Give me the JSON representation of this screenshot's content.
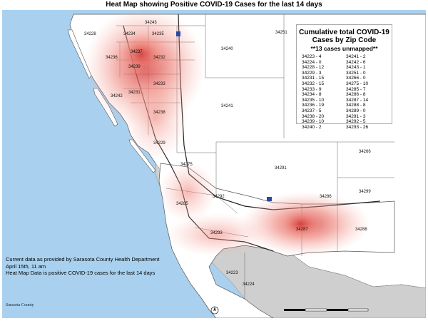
{
  "title": "Heat Map showing Positive COVID-19 Cases for the last 14 days",
  "legend": {
    "title_line1": "Cumulative total COVID-19",
    "title_line2": "Cases by Zip Code",
    "subtitle": "**13 cases unmapped**",
    "left_column": [
      "34223 - 4",
      "34224 - 0",
      "34228 - 12",
      "34229 - 3",
      "34231 - 15",
      "34232 - 15",
      "34233 - 9",
      "34234 - 8",
      "34235 - 10",
      "34236 - 19",
      "34237 - 5",
      "34238 - 20",
      "34239 - 10",
      "34240 - 2"
    ],
    "right_column": [
      "34241 - 2",
      "34242 - 6",
      "34243 - 1",
      "34251 - 0",
      "34266 - 0",
      "34275 - 10",
      "34285 - 7",
      "34286 - 8",
      "34287 - 14",
      "34288 - 8",
      "34289 - 0",
      "34291 - 3",
      "34292 - 5",
      "34293 - 26"
    ]
  },
  "info": {
    "line1": "Current data as provided by Sarasota County Health Department",
    "line2": "April 15th, 11 am",
    "line3": "Heat Map Data is positive COVID-19 cases for the last 14 days"
  },
  "logo": {
    "text": "Sarasota County"
  },
  "zip_labels": [
    {
      "id": "z34243",
      "text": "34243"
    },
    {
      "id": "z34228",
      "text": "34228"
    },
    {
      "id": "z34234",
      "text": "34234"
    },
    {
      "id": "z34235",
      "text": "34235"
    },
    {
      "id": "z34251",
      "text": "34251"
    },
    {
      "id": "z34240",
      "text": "34240"
    },
    {
      "id": "z34237",
      "text": "34237"
    },
    {
      "id": "z34236",
      "text": "34236"
    },
    {
      "id": "z34232",
      "text": "34232"
    },
    {
      "id": "z34239",
      "text": "34239"
    },
    {
      "id": "z34233",
      "text": "34233"
    },
    {
      "id": "z34231",
      "text": "34231"
    },
    {
      "id": "z34242",
      "text": "34242"
    },
    {
      "id": "z34238",
      "text": "34238"
    },
    {
      "id": "z34241",
      "text": "34241"
    },
    {
      "id": "z34229",
      "text": "34229"
    },
    {
      "id": "z34275",
      "text": "34275"
    },
    {
      "id": "z34291",
      "text": "34291"
    },
    {
      "id": "z34266",
      "text": "34266"
    },
    {
      "id": "z34292",
      "text": "34292"
    },
    {
      "id": "z34286",
      "text": "34286"
    },
    {
      "id": "z34299",
      "text": "34299"
    },
    {
      "id": "z34285",
      "text": "34285"
    },
    {
      "id": "z34287",
      "text": "34287"
    },
    {
      "id": "z34288",
      "text": "34288"
    },
    {
      "id": "z34293",
      "text": "34293"
    },
    {
      "id": "z34223",
      "text": "34223"
    },
    {
      "id": "z34224",
      "text": "34224"
    }
  ],
  "colors": {
    "water": "#a9d1ef",
    "land": "#ffffff",
    "gulf_land": "#cfcfcf",
    "heat_core": "#d64a4a",
    "heat_outer": "#f4a49a"
  }
}
